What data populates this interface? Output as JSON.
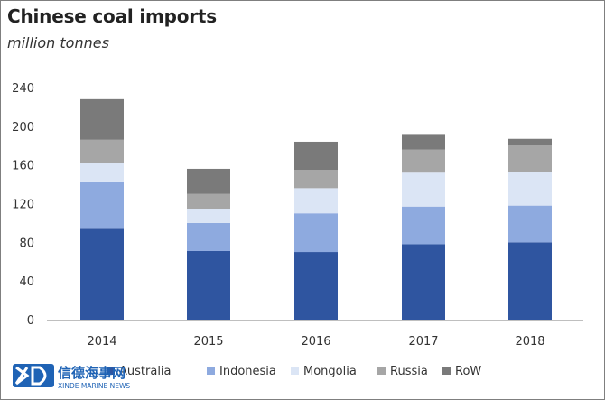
{
  "chart_data": {
    "type": "bar",
    "stacked": true,
    "title": "Chinese coal imports",
    "subtitle": "million tonnes",
    "categories": [
      "2014",
      "2015",
      "2016",
      "2017",
      "2018"
    ],
    "series": [
      {
        "name": "Australia",
        "color": "#2f55a0",
        "values": [
          94,
          71,
          70,
          78,
          80
        ]
      },
      {
        "name": "Indonesia",
        "color": "#8eaadf",
        "values": [
          48,
          29,
          40,
          39,
          38
        ]
      },
      {
        "name": "Mongolia",
        "color": "#dbe5f5",
        "values": [
          20,
          14,
          26,
          35,
          35
        ]
      },
      {
        "name": "Russia",
        "color": "#a6a6a6",
        "values": [
          24,
          16,
          19,
          24,
          27
        ]
      },
      {
        "name": "RoW",
        "color": "#7a7a7a",
        "values": [
          42,
          26,
          29,
          16,
          7
        ]
      }
    ],
    "ylim": [
      0,
      240
    ],
    "yticks": [
      0,
      40,
      80,
      120,
      160,
      200,
      240
    ],
    "grid": false,
    "legend": "bottom"
  },
  "watermark": {
    "chinese": "信德海事网",
    "english": "XINDE MARINE NEWS",
    "logo_color": "#1f63b5"
  }
}
